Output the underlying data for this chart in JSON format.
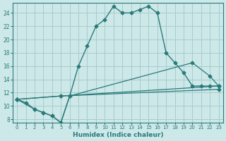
{
  "xlabel": "Humidex (Indice chaleur)",
  "bg_color": "#cde8e8",
  "grid_color": "#a8cccc",
  "line_color": "#2a7a7a",
  "xlim": [
    -0.5,
    23.5
  ],
  "ylim": [
    7.5,
    25.5
  ],
  "yticks": [
    8,
    10,
    12,
    14,
    16,
    18,
    20,
    22,
    24
  ],
  "xticks": [
    0,
    1,
    2,
    3,
    4,
    5,
    6,
    7,
    8,
    9,
    10,
    11,
    12,
    13,
    14,
    15,
    16,
    17,
    18,
    19,
    20,
    21,
    22,
    23
  ],
  "series1_x": [
    0,
    1,
    2,
    3,
    4,
    5,
    6,
    7,
    8,
    9,
    10,
    11,
    12,
    13,
    14,
    15,
    16,
    17,
    18,
    19,
    20,
    21,
    22,
    23
  ],
  "series1_y": [
    11,
    10.5,
    9.5,
    9.0,
    8.5,
    7.5,
    11.5,
    16,
    19,
    22,
    23,
    25,
    24,
    24,
    24.5,
    25,
    24,
    18,
    16.5,
    15,
    13,
    13,
    13,
    13
  ],
  "series2_x": [
    0,
    2,
    3,
    4,
    5,
    6,
    20,
    22,
    23
  ],
  "series2_y": [
    11,
    9.5,
    9.0,
    8.5,
    7.5,
    11.5,
    16.5,
    14.5,
    13
  ],
  "series3_x": [
    0,
    5,
    23
  ],
  "series3_y": [
    11,
    11.5,
    13
  ],
  "series4_x": [
    0,
    5,
    23
  ],
  "series4_y": [
    11,
    11.5,
    12.5
  ]
}
